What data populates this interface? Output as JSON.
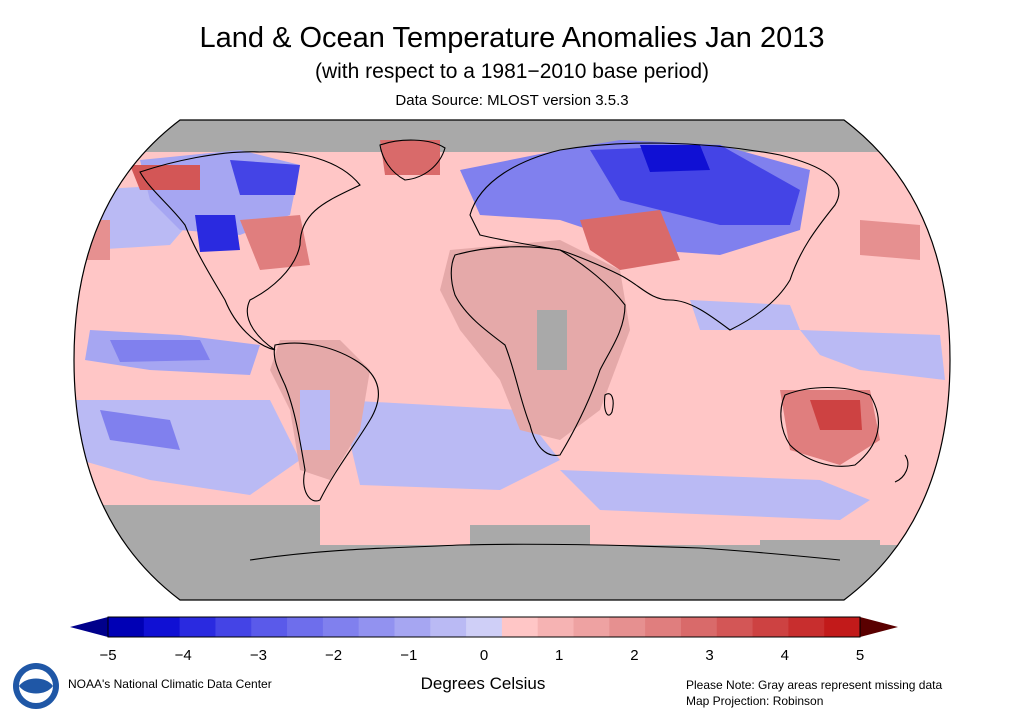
{
  "header": {
    "title": "Land & Ocean Temperature Anomalies Jan 2013",
    "subtitle": "(with respect to a 1981−2010 base period)",
    "source": "Data Source: MLOST version 3.5.3"
  },
  "legend": {
    "units": "Degrees Celsius",
    "min": -5,
    "max": 5,
    "ticks": [
      "−5",
      "−4",
      "−3",
      "−2",
      "−1",
      "0",
      "1",
      "2",
      "3",
      "4",
      "5"
    ],
    "colors": [
      "#0000b5",
      "#1010d4",
      "#2a2ae0",
      "#4444e6",
      "#5a5aea",
      "#6e6eec",
      "#8080ee",
      "#9292f0",
      "#a6a6f2",
      "#babaf4",
      "#cfcff7",
      "#ffc6c6",
      "#f6b3b3",
      "#eea2a2",
      "#e69090",
      "#e07e7e",
      "#d96a6a",
      "#d35656",
      "#cd4242",
      "#c82e2e",
      "#c21a1a"
    ]
  },
  "footer": {
    "org": "NOAA's National Climatic Data Center",
    "note": "Please Note: Gray areas represent missing data",
    "projection": "Map Projection: Robinson"
  },
  "colors": {
    "missing": "#a9a9a9",
    "ocean_warm": "#ffc6c6",
    "land_warm": "#e5a9a9",
    "cool": "#babaf4",
    "cold": "#5a5aea",
    "very_warm": "#d35656",
    "border": "#000000"
  }
}
